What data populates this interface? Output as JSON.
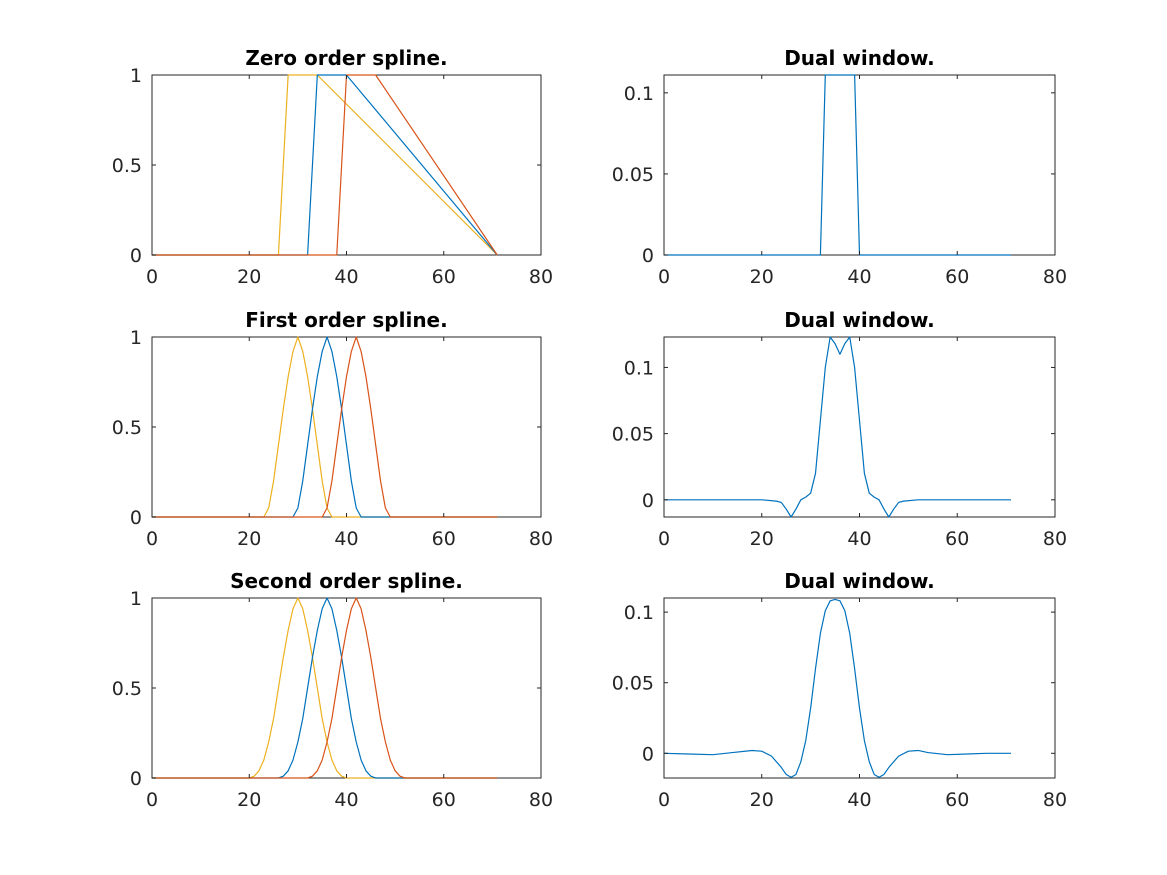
{
  "chart_data": [
    {
      "type": "line",
      "title": "Zero order spline.",
      "xlim": [
        0,
        80
      ],
      "ylim": [
        0,
        1
      ],
      "xticks": [
        0,
        20,
        40,
        60,
        80
      ],
      "xtick_labels": [
        "0",
        "20",
        "40",
        "60",
        "80"
      ],
      "yticks": [
        0,
        0.5,
        1
      ],
      "ytick_labels": [
        "0",
        "0.5",
        "1"
      ],
      "series": [
        {
          "color": "#EDB120",
          "x": [
            0,
            26,
            28,
            34,
            71
          ],
          "y": [
            0,
            0,
            1,
            1,
            0
          ]
        },
        {
          "color": "#0072BD",
          "x": [
            0,
            32,
            34,
            40,
            71
          ],
          "y": [
            0,
            0,
            1,
            1,
            0
          ]
        },
        {
          "color": "#D95319",
          "x": [
            0,
            38,
            40,
            46,
            71
          ],
          "y": [
            0,
            0,
            1,
            1,
            0
          ]
        }
      ]
    },
    {
      "type": "line",
      "title": "Dual window.",
      "xlim": [
        0,
        80
      ],
      "ylim": [
        0,
        0.111
      ],
      "xticks": [
        0,
        20,
        40,
        60,
        80
      ],
      "xtick_labels": [
        "0",
        "20",
        "40",
        "60",
        "80"
      ],
      "yticks": [
        0,
        0.05,
        0.1
      ],
      "ytick_labels": [
        "0",
        "0.05",
        "0.1"
      ],
      "series": [
        {
          "color": "#0072BD",
          "x": [
            0,
            32,
            33,
            39,
            40,
            71
          ],
          "y": [
            0,
            0,
            0.111,
            0.111,
            0,
            0
          ]
        }
      ]
    },
    {
      "type": "line",
      "title": "First order spline.",
      "xlim": [
        0,
        80
      ],
      "ylim": [
        0,
        1
      ],
      "xticks": [
        0,
        20,
        40,
        60,
        80
      ],
      "xtick_labels": [
        "0",
        "20",
        "40",
        "60",
        "80"
      ],
      "yticks": [
        0,
        0.5,
        1
      ],
      "ytick_labels": [
        "0",
        "0.5",
        "1"
      ],
      "series": [
        {
          "color": "#EDB120",
          "x": [
            0,
            23,
            24,
            25,
            26,
            27,
            28,
            29,
            30,
            31,
            32,
            33,
            34,
            35,
            36,
            37,
            71
          ],
          "y": [
            0,
            0,
            0.05,
            0.2,
            0.4,
            0.6,
            0.78,
            0.92,
            1,
            0.92,
            0.78,
            0.6,
            0.4,
            0.2,
            0.05,
            0,
            0
          ]
        },
        {
          "color": "#0072BD",
          "x": [
            0,
            29,
            30,
            31,
            32,
            33,
            34,
            35,
            36,
            37,
            38,
            39,
            40,
            41,
            42,
            43,
            71
          ],
          "y": [
            0,
            0,
            0.05,
            0.2,
            0.4,
            0.6,
            0.78,
            0.92,
            1,
            0.92,
            0.78,
            0.6,
            0.4,
            0.2,
            0.05,
            0,
            0
          ]
        },
        {
          "color": "#D95319",
          "x": [
            0,
            35,
            36,
            37,
            38,
            39,
            40,
            41,
            42,
            43,
            44,
            45,
            46,
            47,
            48,
            49,
            71
          ],
          "y": [
            0,
            0,
            0.05,
            0.2,
            0.4,
            0.6,
            0.78,
            0.92,
            1,
            0.92,
            0.78,
            0.6,
            0.4,
            0.2,
            0.05,
            0,
            0
          ]
        }
      ]
    },
    {
      "type": "line",
      "title": "Dual window.",
      "xlim": [
        0,
        80
      ],
      "ylim": [
        -0.013,
        0.123
      ],
      "xticks": [
        0,
        20,
        40,
        60,
        80
      ],
      "xtick_labels": [
        "0",
        "20",
        "40",
        "60",
        "80"
      ],
      "yticks": [
        0,
        0.05,
        0.1
      ],
      "ytick_labels": [
        "0",
        "0.05",
        "0.1"
      ],
      "series": [
        {
          "color": "#0072BD",
          "x": [
            0,
            20,
            23,
            24,
            25,
            26,
            27,
            28,
            29,
            30,
            31,
            32,
            33,
            34,
            35,
            36,
            37,
            38,
            39,
            40,
            41,
            42,
            43,
            44,
            45,
            46,
            47,
            48,
            49,
            52,
            71
          ],
          "y": [
            0,
            0,
            -0.001,
            -0.002,
            -0.007,
            -0.013,
            -0.007,
            0,
            0.002,
            0.005,
            0.02,
            0.06,
            0.1,
            0.123,
            0.118,
            0.11,
            0.118,
            0.123,
            0.1,
            0.06,
            0.02,
            0.005,
            0.002,
            0,
            -0.007,
            -0.013,
            -0.007,
            -0.002,
            -0.001,
            0,
            0
          ]
        }
      ]
    },
    {
      "type": "line",
      "title": "Second order spline.",
      "xlim": [
        0,
        80
      ],
      "ylim": [
        0,
        1
      ],
      "xticks": [
        0,
        20,
        40,
        60,
        80
      ],
      "xtick_labels": [
        "0",
        "20",
        "40",
        "60",
        "80"
      ],
      "yticks": [
        0,
        0.5,
        1
      ],
      "ytick_labels": [
        "0",
        "0.5",
        "1"
      ],
      "series": [
        {
          "color": "#EDB120",
          "x": [
            0,
            20,
            21,
            22,
            23,
            24,
            25,
            26,
            27,
            28,
            29,
            30,
            31,
            32,
            33,
            34,
            35,
            36,
            37,
            38,
            39,
            40,
            71
          ],
          "y": [
            0,
            0,
            0.01,
            0.04,
            0.1,
            0.2,
            0.33,
            0.5,
            0.67,
            0.82,
            0.94,
            1,
            0.94,
            0.82,
            0.67,
            0.5,
            0.33,
            0.2,
            0.1,
            0.04,
            0.01,
            0,
            0
          ]
        },
        {
          "color": "#0072BD",
          "x": [
            0,
            26,
            27,
            28,
            29,
            30,
            31,
            32,
            33,
            34,
            35,
            36,
            37,
            38,
            39,
            40,
            41,
            42,
            43,
            44,
            45,
            46,
            71
          ],
          "y": [
            0,
            0,
            0.01,
            0.04,
            0.1,
            0.2,
            0.33,
            0.5,
            0.67,
            0.82,
            0.94,
            1,
            0.94,
            0.82,
            0.67,
            0.5,
            0.33,
            0.2,
            0.1,
            0.04,
            0.01,
            0,
            0
          ]
        },
        {
          "color": "#D95319",
          "x": [
            0,
            32,
            33,
            34,
            35,
            36,
            37,
            38,
            39,
            40,
            41,
            42,
            43,
            44,
            45,
            46,
            47,
            48,
            49,
            50,
            51,
            52,
            71
          ],
          "y": [
            0,
            0,
            0.01,
            0.04,
            0.1,
            0.2,
            0.33,
            0.5,
            0.67,
            0.82,
            0.94,
            1,
            0.94,
            0.82,
            0.67,
            0.5,
            0.33,
            0.2,
            0.1,
            0.04,
            0.01,
            0,
            0
          ]
        }
      ]
    },
    {
      "type": "line",
      "title": "Dual window.",
      "xlim": [
        0,
        80
      ],
      "ylim": [
        -0.0175,
        0.11
      ],
      "xticks": [
        0,
        20,
        40,
        60,
        80
      ],
      "xtick_labels": [
        "0",
        "20",
        "40",
        "60",
        "80"
      ],
      "yticks": [
        0,
        0.05,
        0.1
      ],
      "ytick_labels": [
        "0",
        "0.05",
        "0.1"
      ],
      "series": [
        {
          "color": "#0072BD",
          "x": [
            0,
            5,
            10,
            14,
            18,
            20,
            22,
            24,
            25,
            26,
            27,
            28,
            29,
            30,
            31,
            32,
            33,
            34,
            35,
            36,
            37,
            38,
            39,
            40,
            41,
            42,
            43,
            44,
            45,
            46,
            47,
            48,
            50,
            52,
            54,
            58,
            62,
            66,
            71
          ],
          "y": [
            0,
            -0.0005,
            -0.001,
            0.0005,
            0.002,
            0.0015,
            -0.002,
            -0.01,
            -0.015,
            -0.017,
            -0.015,
            -0.006,
            0.009,
            0.032,
            0.06,
            0.085,
            0.101,
            0.108,
            0.109,
            0.108,
            0.101,
            0.085,
            0.06,
            0.032,
            0.009,
            -0.006,
            -0.015,
            -0.017,
            -0.015,
            -0.01,
            -0.006,
            -0.002,
            0.0015,
            0.002,
            0.0005,
            -0.001,
            -0.0005,
            0,
            0
          ]
        }
      ]
    }
  ]
}
